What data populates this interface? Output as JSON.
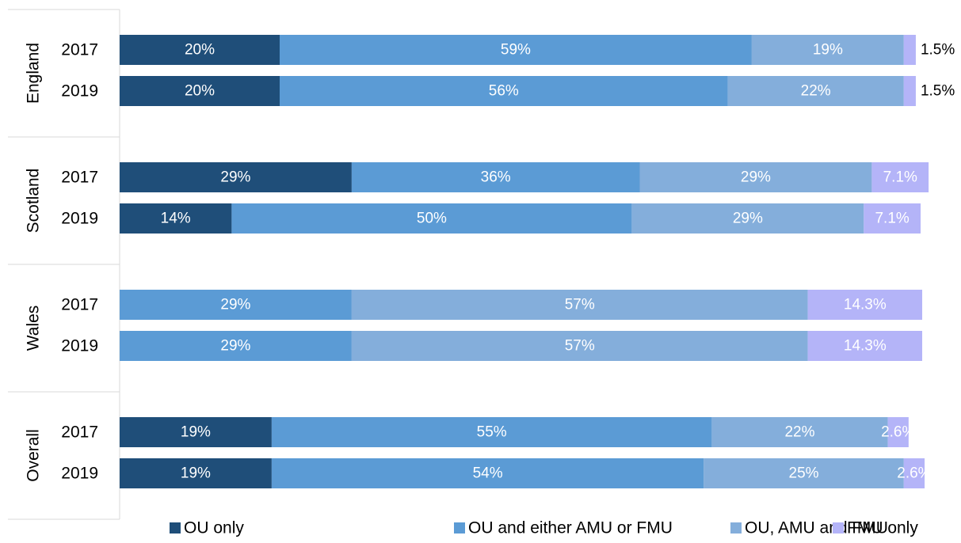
{
  "chart_data": {
    "type": "bar",
    "orientation": "horizontal",
    "stacked": true,
    "percent": true,
    "title": "",
    "xlabel": "",
    "ylabel": "",
    "xlim": [
      0,
      100
    ],
    "grid": false,
    "legend_position": "bottom",
    "series": [
      {
        "name": "OU only",
        "color": "#1f4e79"
      },
      {
        "name": "OU and either AMU or FMU",
        "color": "#5b9bd5"
      },
      {
        "name": "OU, AMU and FMU",
        "color": "#84aedb"
      },
      {
        "name": "FMU only",
        "color": "#b4b4f8"
      }
    ],
    "groups": [
      {
        "label": "England",
        "rows": [
          {
            "year": "2017",
            "values": [
              20,
              59,
              19,
              1.5
            ],
            "labels": [
              "20%",
              "59%",
              "19%",
              "1.5%"
            ]
          },
          {
            "year": "2019",
            "values": [
              20,
              56,
              22,
              1.5
            ],
            "labels": [
              "20%",
              "56%",
              "22%",
              "1.5%"
            ]
          }
        ]
      },
      {
        "label": "Scotland",
        "rows": [
          {
            "year": "2017",
            "values": [
              29,
              36,
              29,
              7.1
            ],
            "labels": [
              "29%",
              "36%",
              "29%",
              "7.1%"
            ]
          },
          {
            "year": "2019",
            "values": [
              14,
              50,
              29,
              7.1
            ],
            "labels": [
              "14%",
              "50%",
              "29%",
              "7.1%"
            ]
          }
        ]
      },
      {
        "label": "Wales",
        "rows": [
          {
            "year": "2017",
            "values": [
              0,
              29,
              57,
              14.3
            ],
            "labels": [
              "",
              "29%",
              "57%",
              "14.3%"
            ]
          },
          {
            "year": "2019",
            "values": [
              0,
              29,
              57,
              14.3
            ],
            "labels": [
              "",
              "29%",
              "57%",
              "14.3%"
            ]
          }
        ]
      },
      {
        "label": "Overall",
        "rows": [
          {
            "year": "2017",
            "values": [
              19,
              55,
              22,
              2.6
            ],
            "labels": [
              "19%",
              "55%",
              "22%",
              "2.6%"
            ]
          },
          {
            "year": "2019",
            "values": [
              19,
              54,
              25,
              2.6
            ],
            "labels": [
              "19%",
              "54%",
              "25%",
              "2.6%"
            ]
          }
        ]
      }
    ]
  }
}
